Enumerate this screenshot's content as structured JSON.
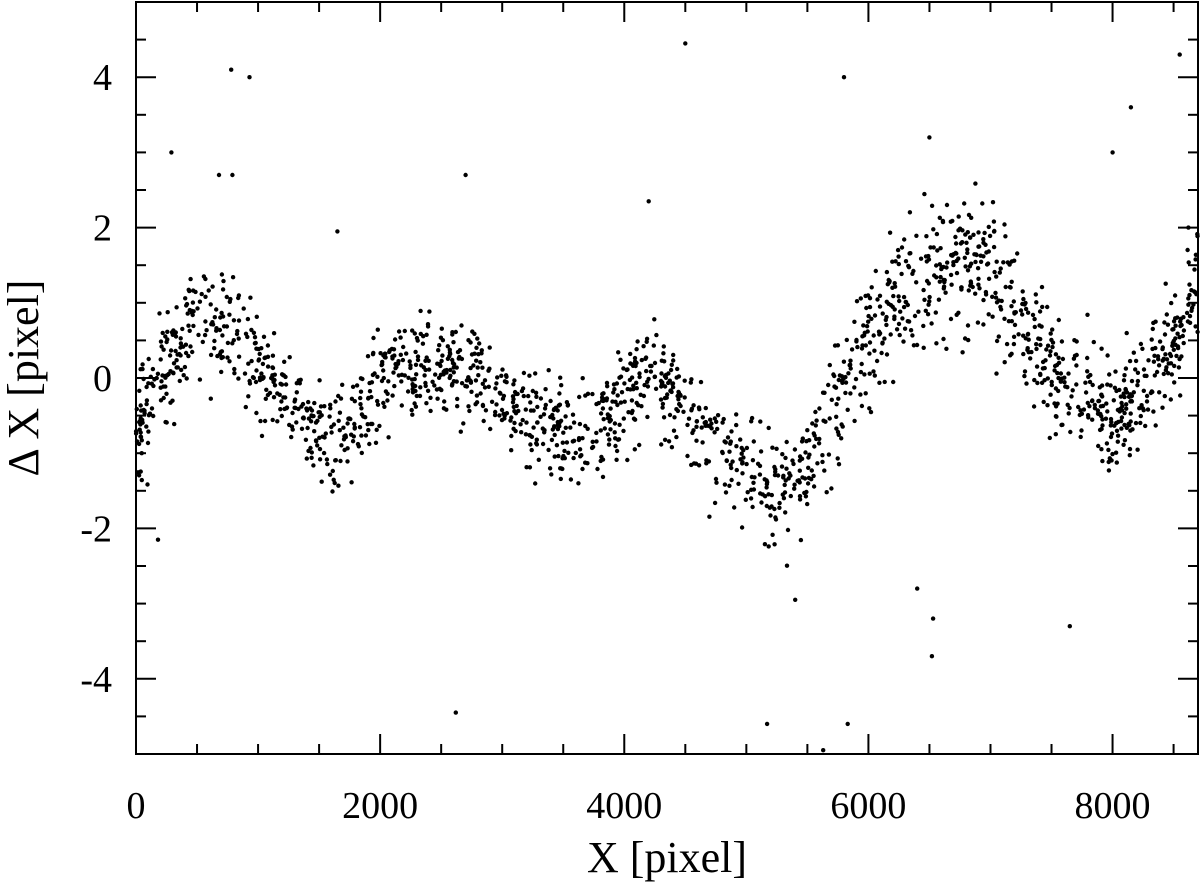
{
  "chart_data": {
    "type": "scatter",
    "xlabel": "X [pixel]",
    "ylabel": "Δ X [pixel]",
    "xlim": [
      0,
      8700
    ],
    "ylim": [
      -5,
      5
    ],
    "x_ticks": [
      0,
      2000,
      4000,
      6000,
      8000
    ],
    "y_ticks": [
      -4,
      -2,
      0,
      2,
      4
    ],
    "x_tick_labels": [
      "0",
      "2000",
      "4000",
      "6000",
      "8000"
    ],
    "y_tick_labels": [
      "-4",
      "-2",
      "0",
      "2",
      "4"
    ],
    "grid": false,
    "marker_color": "#000000",
    "outliers": [
      {
        "x": 290,
        "y": 3.0
      },
      {
        "x": 780,
        "y": 4.1
      },
      {
        "x": 930,
        "y": 4.0
      },
      {
        "x": 680,
        "y": 2.7
      },
      {
        "x": 790,
        "y": 2.7
      },
      {
        "x": 2700,
        "y": 2.7
      },
      {
        "x": 4500,
        "y": 4.45
      },
      {
        "x": 5800,
        "y": 4.0
      },
      {
        "x": 6500,
        "y": 3.2
      },
      {
        "x": 8000,
        "y": 3.0
      },
      {
        "x": 8150,
        "y": 3.6
      },
      {
        "x": 8550,
        "y": 4.3
      },
      {
        "x": 2620,
        "y": -4.45
      },
      {
        "x": 5170,
        "y": -4.6
      },
      {
        "x": 5830,
        "y": -4.6
      },
      {
        "x": 5630,
        "y": -4.95
      },
      {
        "x": 6520,
        "y": -3.7
      },
      {
        "x": 6530,
        "y": -3.2
      },
      {
        "x": 6400,
        "y": -2.8
      },
      {
        "x": 5400,
        "y": -2.95
      },
      {
        "x": 7650,
        "y": -3.3
      },
      {
        "x": 180,
        "y": -2.15
      },
      {
        "x": 4200,
        "y": 2.35
      },
      {
        "x": 1650,
        "y": 1.95
      }
    ],
    "trend_x": [
      0,
      300,
      500,
      800,
      1100,
      1400,
      1700,
      2000,
      2400,
      2800,
      3100,
      3500,
      3800,
      4000,
      4200,
      4500,
      4800,
      5000,
      5200,
      5500,
      5800,
      6000,
      6300,
      6600,
      6900,
      7200,
      7500,
      7800,
      8000,
      8300,
      8600,
      8700
    ],
    "trend_y": [
      -0.7,
      0.3,
      0.9,
      0.6,
      0.1,
      -0.6,
      -0.9,
      0.0,
      0.3,
      0.0,
      -0.5,
      -0.7,
      -0.7,
      -0.2,
      0.0,
      -0.3,
      -1.0,
      -1.3,
      -1.5,
      -1.2,
      -0.2,
      0.5,
      1.1,
      1.5,
      1.6,
      1.0,
      0.1,
      -0.2,
      -0.6,
      0.0,
      0.8,
      1.6
    ],
    "trend_scatter": [
      0.55,
      0.6,
      0.6,
      0.55,
      0.5,
      0.45,
      0.45,
      0.45,
      0.45,
      0.45,
      0.45,
      0.45,
      0.45,
      0.5,
      0.5,
      0.5,
      0.5,
      0.5,
      0.5,
      0.5,
      0.55,
      0.6,
      0.65,
      0.7,
      0.7,
      0.65,
      0.6,
      0.55,
      0.5,
      0.55,
      0.6,
      0.6
    ]
  }
}
